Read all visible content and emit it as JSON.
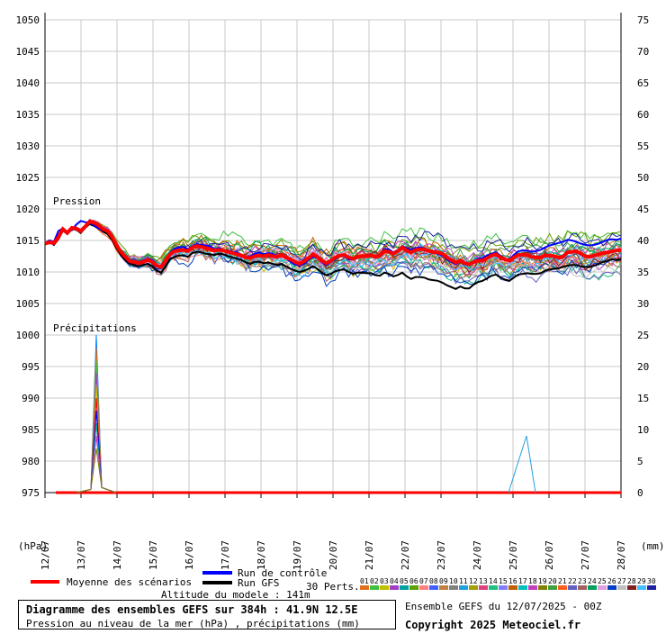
{
  "chart_data": {
    "type": "line",
    "title": "Diagramme des ensembles GEFS sur 384h : 41.9N 12.5E",
    "subtitle": "Pression au niveau de la mer (hPa) , précipitations (mm)",
    "left_axis_unit": "(hPa)",
    "right_axis_unit": "(mm)",
    "pressure_label": "Pression",
    "precip_label": "Précipitations",
    "x_ticks": [
      "12/07",
      "13/07",
      "14/07",
      "15/07",
      "16/07",
      "17/07",
      "18/07",
      "19/07",
      "20/07",
      "21/07",
      "22/07",
      "23/07",
      "24/07",
      "25/07",
      "26/07",
      "27/07",
      "28/07"
    ],
    "y_left_ticks": [
      1050,
      1045,
      1040,
      1035,
      1030,
      1025,
      1020,
      1015,
      1010,
      1005,
      1000,
      995,
      990,
      985,
      980,
      975
    ],
    "y_right_ticks": [
      75,
      70,
      65,
      60,
      55,
      50,
      45,
      40,
      35,
      30,
      25,
      20,
      15,
      10,
      5,
      0
    ],
    "ylim_pressure": [
      975,
      1050
    ],
    "ylim_precip": [
      0,
      75
    ],
    "grid": true,
    "series": [
      {
        "name": "Moyenne des scénarios",
        "color": "#ff0000",
        "axis": "pressure",
        "values": [
          1014.5,
          1014.7,
          1014.6,
          1015.5,
          1016.8,
          1016.2,
          1017.0,
          1016.9,
          1016.5,
          1017.2,
          1018.0,
          1017.8,
          1017.4,
          1016.8,
          1016.5,
          1015.6,
          1014.3,
          1013.2,
          1012.4,
          1011.7,
          1011.6,
          1011.4,
          1011.6,
          1011.9,
          1011.6,
          1011.0,
          1010.8,
          1011.8,
          1012.8,
          1013.3,
          1013.4,
          1013.5,
          1013.3,
          1013.9,
          1014.1,
          1014.0,
          1013.8,
          1013.6,
          1013.4,
          1013.5,
          1013.4,
          1013.2,
          1013.0,
          1012.8,
          1012.6,
          1012.3,
          1012.2,
          1012.5,
          1012.6,
          1012.5,
          1012.7,
          1012.5,
          1012.4,
          1012.7,
          1012.3,
          1012.0,
          1011.6,
          1011.3,
          1011.7,
          1012.2,
          1012.8,
          1012.4,
          1011.8,
          1011.4,
          1011.8,
          1012.3,
          1012.6,
          1012.7,
          1012.3,
          1012.1,
          1012.4,
          1012.5,
          1012.5,
          1012.6,
          1012.4,
          1012.6,
          1013.3,
          1013.2,
          1012.9,
          1013.3,
          1013.9,
          1013.4,
          1013.1,
          1013.5,
          1013.6,
          1013.6,
          1013.3,
          1013.2,
          1013.1,
          1012.9,
          1012.3,
          1011.9,
          1011.5,
          1011.8,
          1011.4,
          1011.2,
          1011.6,
          1011.8,
          1011.8,
          1012.2,
          1012.6,
          1012.8,
          1012.3,
          1012.0,
          1011.8,
          1012.3,
          1012.7,
          1012.7,
          1012.7,
          1012.4,
          1012.3,
          1012.3,
          1012.6,
          1012.6,
          1012.5,
          1012.3,
          1012.4,
          1013.1,
          1013.2,
          1013.3,
          1012.9,
          1012.5,
          1012.4,
          1012.6,
          1012.8,
          1013.0,
          1013.1,
          1013.3,
          1013.4,
          1013.5
        ]
      },
      {
        "name": "Run de contrôle",
        "color": "#0000ff",
        "axis": "pressure",
        "values": [
          1014.6,
          1015.0,
          1014.8,
          1016.5,
          1016.9,
          1016.4,
          1016.6,
          1017.5,
          1018.1,
          1017.9,
          1017.8,
          1017.4,
          1016.9,
          1016.7,
          1016.4,
          1015.5,
          1014.2,
          1013.1,
          1012.2,
          1011.9,
          1011.7,
          1011.6,
          1011.8,
          1012.1,
          1011.9,
          1011.1,
          1010.9,
          1011.8,
          1013.0,
          1013.7,
          1013.9,
          1014.0,
          1013.6,
          1014.1,
          1014.4,
          1014.3,
          1014.2,
          1014.1,
          1013.6,
          1013.8,
          1013.5,
          1013.4,
          1013.2,
          1013.1,
          1012.7,
          1012.4,
          1012.5,
          1012.9,
          1013.1,
          1012.8,
          1013.0,
          1012.9,
          1012.4,
          1012.6,
          1012.2,
          1011.6,
          1011.2,
          1011.0,
          1011.3,
          1011.9,
          1012.4,
          1012.2,
          1011.6,
          1011.1,
          1011.6,
          1012.0,
          1012.5,
          1012.5,
          1012.0,
          1012.0,
          1012.5,
          1012.6,
          1012.6,
          1012.5,
          1012.5,
          1012.8,
          1013.6,
          1013.6,
          1013.1,
          1013.5,
          1014.1,
          1013.8,
          1013.5,
          1013.8,
          1013.9,
          1013.8,
          1013.3,
          1013.1,
          1012.9,
          1012.6,
          1012.0,
          1011.6,
          1011.2,
          1011.7,
          1011.2,
          1011.1,
          1011.7,
          1012.1,
          1012.2,
          1012.6,
          1012.9,
          1013.1,
          1012.6,
          1012.1,
          1012.0,
          1012.7,
          1013.3,
          1013.4,
          1013.4,
          1013.2,
          1013.3,
          1013.5,
          1013.9,
          1014.2,
          1014.4,
          1014.6,
          1014.8,
          1015.1,
          1015.0,
          1014.8,
          1014.5,
          1014.3,
          1014.2,
          1014.3,
          1014.5,
          1014.8,
          1015.1,
          1015.2,
          1015.1,
          1015.3
        ]
      },
      {
        "name": "Run GFS",
        "color": "#000000",
        "axis": "pressure",
        "values": [
          1014.4,
          1014.9,
          1014.3,
          1015.2,
          1016.6,
          1016.0,
          1016.8,
          1016.7,
          1016.2,
          1017.0,
          1017.6,
          1017.3,
          1016.9,
          1016.4,
          1016.0,
          1015.1,
          1013.8,
          1012.7,
          1011.9,
          1011.3,
          1011.1,
          1010.9,
          1011.1,
          1011.3,
          1010.9,
          1010.2,
          1009.9,
          1010.9,
          1012.0,
          1012.4,
          1012.6,
          1012.6,
          1012.4,
          1013.0,
          1013.2,
          1013.1,
          1012.9,
          1012.8,
          1012.7,
          1012.9,
          1012.8,
          1012.5,
          1012.3,
          1012.1,
          1011.9,
          1011.5,
          1011.3,
          1011.6,
          1011.6,
          1011.4,
          1011.5,
          1011.3,
          1011.1,
          1011.3,
          1010.9,
          1010.5,
          1010.2,
          1010.0,
          1010.2,
          1010.5,
          1010.9,
          1010.5,
          1009.9,
          1009.5,
          1009.7,
          1010.1,
          1010.3,
          1010.4,
          1010.0,
          1009.7,
          1009.9,
          1009.9,
          1009.8,
          1009.8,
          1009.5,
          1009.4,
          1009.9,
          1009.7,
          1009.3,
          1009.5,
          1009.9,
          1009.3,
          1008.9,
          1009.2,
          1009.2,
          1009.1,
          1008.8,
          1008.7,
          1008.6,
          1008.3,
          1007.9,
          1007.6,
          1007.3,
          1007.7,
          1007.4,
          1007.4,
          1008.0,
          1008.4,
          1008.6,
          1009.0,
          1009.4,
          1009.6,
          1009.1,
          1008.8,
          1008.6,
          1009.1,
          1009.6,
          1009.7,
          1009.8,
          1009.7,
          1009.7,
          1009.8,
          1010.2,
          1010.4,
          1010.5,
          1010.6,
          1010.8,
          1011.0,
          1011.1,
          1011.1,
          1010.9,
          1010.8,
          1010.8,
          1011.0,
          1011.3,
          1011.6,
          1011.8,
          1012.0,
          1011.9,
          1012.1
        ]
      }
    ],
    "precip_mean": [
      0,
      0,
      0,
      0,
      0,
      0,
      0,
      0,
      0,
      0,
      0,
      0,
      0,
      0,
      0,
      0,
      0,
      0,
      0,
      0,
      0,
      0,
      0,
      0,
      0,
      0,
      0,
      0,
      0,
      0,
      0,
      0,
      0,
      0,
      0,
      0,
      0,
      0,
      0,
      0,
      0,
      0,
      0,
      0,
      0,
      0,
      0,
      0,
      0,
      0,
      0,
      0,
      0,
      0,
      0,
      0,
      0,
      0,
      0,
      0,
      0,
      0,
      0,
      0,
      0,
      0,
      0,
      0,
      0,
      0,
      0,
      0,
      0,
      0,
      0,
      0,
      0,
      0,
      0,
      0,
      0,
      0,
      0,
      0,
      0,
      0,
      0,
      0,
      0,
      0,
      0,
      0,
      0,
      0,
      0,
      0,
      0,
      0,
      0,
      0,
      0,
      0,
      0,
      0,
      0,
      0,
      0,
      0,
      0,
      0,
      0,
      0,
      0,
      0,
      0,
      0,
      0,
      0,
      0,
      0,
      0,
      0,
      0,
      0,
      0,
      0,
      0,
      0,
      0,
      0
    ],
    "precip_peaks_mm": {
      "13/07": 25,
      "25/07": 9
    },
    "legend_position": "bottom",
    "legend_labels": {
      "mean": "Moyenne des scénarios",
      "control": "Run de contrôle",
      "gfs": "Run GFS",
      "perts": "30 Perts."
    },
    "perturbation_numbers": [
      "01",
      "02",
      "03",
      "04",
      "05",
      "06",
      "07",
      "08",
      "09",
      "10",
      "11",
      "12",
      "13",
      "14",
      "15",
      "16",
      "17",
      "18",
      "19",
      "20",
      "21",
      "22",
      "23",
      "24",
      "25",
      "26",
      "27",
      "28",
      "29",
      "30"
    ],
    "perturbation_colors": [
      "#e07020",
      "#40c040",
      "#c0c000",
      "#a040c0",
      "#00a0a0",
      "#60a000",
      "#ff8080",
      "#4060ff",
      "#c08040",
      "#808080",
      "#20a0e0",
      "#a0a000",
      "#e04080",
      "#20c080",
      "#8080ff",
      "#c06000",
      "#00c0c0",
      "#c040c0",
      "#808000",
      "#40a040",
      "#ff6020",
      "#6060c0",
      "#a06060",
      "#00a060",
      "#e0a0e0",
      "#0040c0",
      "#c0c0c0",
      "#802020",
      "#40c0ff",
      "#2020a0"
    ]
  },
  "altitude": "Altitude du modele : 141m",
  "info_title": "Diagramme des ensembles GEFS sur 384h : 41.9N 12.5E",
  "info_subtitle": "Pression au niveau de la mer (hPa) , précipitations (mm)",
  "run_info": "Ensemble GEFS du 12/07/2025 - 00Z",
  "copyright": "Copyright 2025 Meteociel.fr"
}
